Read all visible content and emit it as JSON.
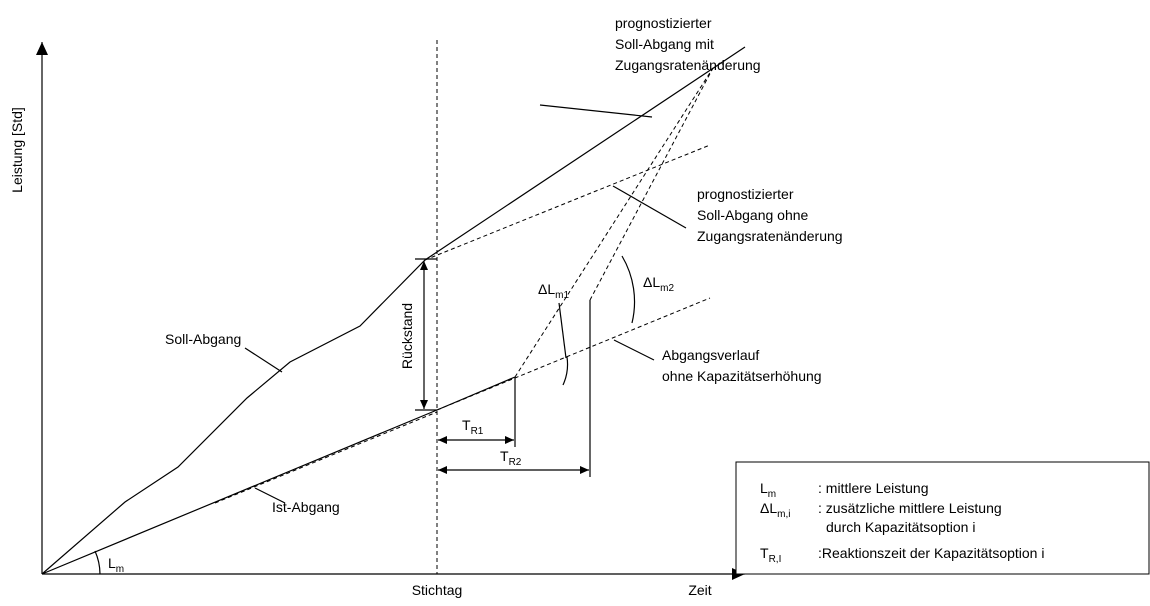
{
  "y_axis": "Leistung [Std]",
  "x_axis": "Zeit",
  "stichtag": "Stichtag",
  "soll_abgang": "Soll-Abgang",
  "ist_abgang": "Ist-Abgang",
  "rueckstand": "Rückstand",
  "prog_mit": [
    "prognostizierter",
    "Soll-Abgang mit",
    "Zugangsratenänderung"
  ],
  "prog_ohne": [
    "prognostizierter",
    "Soll-Abgang ohne",
    "Zugangsratenänderung"
  ],
  "abgangsverlauf": [
    "Abgangsverlauf",
    "ohne Kapazitätserhöhung"
  ],
  "lm": {
    "main": "L",
    "sub": "m"
  },
  "dlm1": {
    "main": "ΔL",
    "sub": "m1"
  },
  "dlm2": {
    "main": "ΔL",
    "sub": "m2"
  },
  "tr1": {
    "main": "T",
    "sub": "R1"
  },
  "tr2": {
    "main": "T",
    "sub": "R2"
  },
  "legend": [
    {
      "symbol": "L",
      "sub": "m",
      "text": ": mittlere Leistung"
    },
    {
      "symbol": "ΔL",
      "sub": "m,i",
      "text": [
        ": zusätzliche mittlere Leistung",
        "durch Kapazitätsoption i"
      ]
    },
    {
      "symbol": "T",
      "sub": "R,I",
      "text": ":Reaktionszeit der Kapazitätsoption i"
    }
  ]
}
